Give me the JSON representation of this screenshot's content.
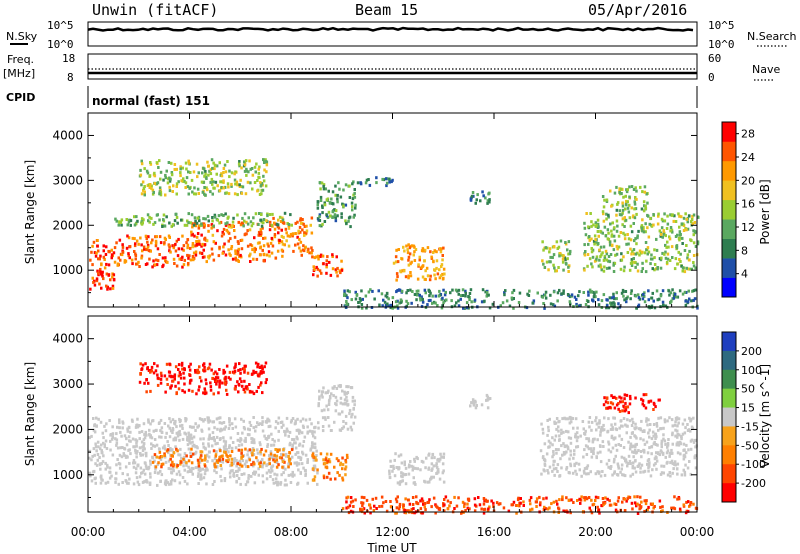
{
  "header": {
    "station": "Unwin (fitACF)",
    "beam": "Beam 15",
    "date": "05/Apr/2016"
  },
  "strip_labels": {
    "nsky": "N.Sky",
    "nsearch": "N.Search",
    "freq": "Freq.",
    "freq_unit": "[MHz]",
    "nave": "Nave",
    "cpid": "CPID",
    "cpid_value": "normal (fast) 151",
    "noise_top": "10^5",
    "noise_bottom": "10^0",
    "freq_top": "18",
    "freq_bottom": "8",
    "nave_top": "60",
    "nave_bottom": "0"
  },
  "colors": {
    "power": [
      "#0000ff",
      "#1f4fa8",
      "#2e7d50",
      "#5aa860",
      "#9acd32",
      "#f0c020",
      "#ff9900",
      "#ff5500",
      "#ff0000"
    ],
    "velocity": [
      "#1f3fbf",
      "#2e6a80",
      "#3e8e4e",
      "#7fcf3f",
      "#c8c8c8",
      "#f7a21b",
      "#ff7f00",
      "#ff4500",
      "#ff0000"
    ],
    "ground_scatter": "#c8c8c8"
  },
  "chart_data": [
    {
      "type": "heatmap",
      "name": "power",
      "ylabel": "Slant Range [km]",
      "xlabel": "",
      "x_ticks": [
        "00:00",
        "04:00",
        "08:00",
        "12:00",
        "16:00",
        "20:00",
        "00:00"
      ],
      "y_ticks": [
        1000,
        2000,
        3000,
        4000
      ],
      "xlim_hours": [
        0,
        24
      ],
      "ylim_km": [
        180,
        4500
      ],
      "colorbar_label": "Power [dB]",
      "colorbar_ticks": [
        4,
        8,
        12,
        16,
        20,
        24,
        28
      ],
      "colorbar_range": [
        0,
        30
      ],
      "regions": [
        {
          "t0": 0.0,
          "t1": 1.0,
          "r0": 600,
          "r1": 1700,
          "level": 28
        },
        {
          "t0": 1.0,
          "t1": 4.0,
          "r0": 1100,
          "r1": 1800,
          "level": 26
        },
        {
          "t0": 4.0,
          "t1": 7.0,
          "r0": 1200,
          "r1": 2100,
          "level": 25
        },
        {
          "t0": 7.0,
          "t1": 8.8,
          "r0": 1300,
          "r1": 2200,
          "level": 24
        },
        {
          "t0": 8.8,
          "t1": 10.0,
          "r0": 900,
          "r1": 1400,
          "level": 26
        },
        {
          "t0": 1.0,
          "t1": 8.0,
          "r0": 2000,
          "r1": 2300,
          "level": 12
        },
        {
          "t0": 2.0,
          "t1": 7.0,
          "r0": 2700,
          "r1": 3500,
          "level": 14
        },
        {
          "t0": 9.0,
          "t1": 10.5,
          "r0": 2000,
          "r1": 3000,
          "level": 10
        },
        {
          "t0": 10.5,
          "t1": 12.0,
          "r0": 2900,
          "r1": 3100,
          "level": 6
        },
        {
          "t0": 12.0,
          "t1": 14.0,
          "r0": 800,
          "r1": 1600,
          "level": 22
        },
        {
          "t0": 15.0,
          "t1": 15.8,
          "r0": 2500,
          "r1": 2800,
          "level": 8
        },
        {
          "t0": 17.8,
          "t1": 19.0,
          "r0": 1000,
          "r1": 1700,
          "level": 14
        },
        {
          "t0": 19.5,
          "t1": 24.0,
          "r0": 1000,
          "r1": 2300,
          "level": 14
        },
        {
          "t0": 20.2,
          "t1": 22.0,
          "r0": 2300,
          "r1": 2900,
          "level": 14
        },
        {
          "t0": 10.0,
          "t1": 24.0,
          "r0": 180,
          "r1": 600,
          "level": 8
        }
      ]
    },
    {
      "type": "heatmap",
      "name": "velocity",
      "ylabel": "Slant Range [km]",
      "xlabel": "Time UT",
      "x_ticks": [
        "00:00",
        "04:00",
        "08:00",
        "12:00",
        "16:00",
        "20:00",
        "00:00"
      ],
      "y_ticks": [
        1000,
        2000,
        3000,
        4000
      ],
      "xlim_hours": [
        0,
        24
      ],
      "ylim_km": [
        180,
        4500
      ],
      "colorbar_label": "Velocity [m s^-1]",
      "colorbar_ticks": [
        "200",
        "100",
        "50",
        "15",
        "-15",
        "-50",
        "-100",
        "-200"
      ],
      "regions": [
        {
          "t0": 0.0,
          "t1": 9.0,
          "r0": 800,
          "r1": 2300,
          "level": "ground"
        },
        {
          "t0": 2.5,
          "t1": 8.0,
          "r0": 1200,
          "r1": 1600,
          "level": "-50"
        },
        {
          "t0": 8.8,
          "t1": 10.2,
          "r0": 900,
          "r1": 1500,
          "level": "-50"
        },
        {
          "t0": 9.0,
          "t1": 10.5,
          "r0": 2000,
          "r1": 3000,
          "level": "ground"
        },
        {
          "t0": 11.8,
          "t1": 14.0,
          "r0": 800,
          "r1": 1500,
          "level": "ground"
        },
        {
          "t0": 15.0,
          "t1": 15.8,
          "r0": 2500,
          "r1": 2800,
          "level": "ground"
        },
        {
          "t0": 17.8,
          "t1": 24.0,
          "r0": 1000,
          "r1": 2300,
          "level": "ground"
        },
        {
          "t0": 20.2,
          "t1": 22.5,
          "r0": 2400,
          "r1": 2800,
          "level": "-200"
        },
        {
          "t0": 2.0,
          "t1": 7.0,
          "r0": 2800,
          "r1": 3500,
          "level": "-200"
        },
        {
          "t0": 10.0,
          "t1": 24.0,
          "r0": 180,
          "r1": 550,
          "level": "-100"
        }
      ]
    }
  ]
}
